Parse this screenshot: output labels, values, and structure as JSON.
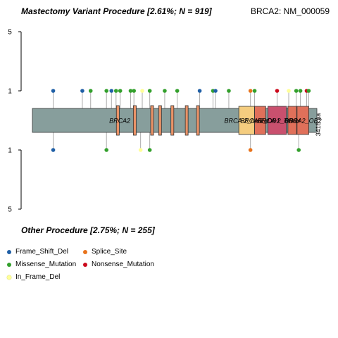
{
  "titles": {
    "top_group": "Mastectomy Variant Procedure [2.61%; N = 919]",
    "bottom_group": "Other Procedure [2.75%; N = 255]",
    "gene_transcript": "BRCA2: NM_000059"
  },
  "colors": {
    "frame_shift_del": "#1f5fa6",
    "missense_mutation": "#33a02c",
    "in_frame_del": "#ffff99",
    "splice_site": "#e8731c",
    "nonsense_mutation": "#cc0a1c",
    "protein_body": "#879e9c",
    "brca2_repeat": "#e99267",
    "brca2_helical": "#f5cd7f",
    "brca2_ob1": "#e0705a",
    "brca2_ob3": "#c9506e",
    "tower": "#e0705a"
  },
  "legend": [
    {
      "key": "frame_shift_del",
      "label": "Frame_Shift_Del"
    },
    {
      "key": "splice_site",
      "label": "Splice_Site"
    },
    {
      "key": "missense_mutation",
      "label": "Missense_Mutation"
    },
    {
      "key": "nonsense_mutation",
      "label": "Nonsense_Mutation"
    },
    {
      "key": "in_frame_del",
      "label": "In_Frame_Del"
    }
  ],
  "chart_data": {
    "type": "lollipop",
    "protein_length": 3418,
    "protein_length_label": "3418 aa",
    "top_axis": {
      "ticks": [
        "5",
        "1"
      ]
    },
    "bottom_axis": {
      "ticks": [
        "1",
        "5"
      ]
    },
    "domains": [
      {
        "name": "BRCA2",
        "start": 1009,
        "end": 1044,
        "label": "BRCA2",
        "label_pos": 1050,
        "color_key": "brca2_repeat"
      },
      {
        "name": "BRCA2",
        "start": 1213,
        "end": 1248,
        "color_key": "brca2_repeat"
      },
      {
        "name": "BRCA2",
        "start": 1421,
        "end": 1456,
        "color_key": "brca2_repeat"
      },
      {
        "name": "BRCA2",
        "start": 1517,
        "end": 1551,
        "color_key": "brca2_repeat"
      },
      {
        "name": "BRCA2",
        "start": 1664,
        "end": 1699,
        "color_key": "brca2_repeat"
      },
      {
        "name": "BRCA2",
        "start": 1837,
        "end": 1871,
        "color_key": "brca2_repeat"
      },
      {
        "name": "BRCA2",
        "start": 1972,
        "end": 2006,
        "color_key": "brca2_repeat"
      },
      {
        "name": "BRCA-2_helical",
        "start": 2480,
        "end": 2668,
        "label": "BRCA-2_helical",
        "color_key": "brca2_helical"
      },
      {
        "name": "BRCA-2_OB1",
        "start": 2670,
        "end": 2803,
        "label": "BRCA-2_OB1",
        "color_key": "brca2_ob1"
      },
      {
        "name": "BRCA-2_OB3",
        "start": 2830,
        "end": 3052,
        "label": "BRCA-2_OB3",
        "color_key": "brca2_ob3"
      },
      {
        "name": "Tower",
        "start": 3070,
        "end": 3175,
        "label": "Tower",
        "color_key": "tower"
      },
      {
        "name": "BRCA-2_OB2",
        "start": 3180,
        "end": 3320,
        "label": "BRCA2_OB2",
        "color_key": "tower"
      }
    ],
    "top_mutations": [
      {
        "position": 250,
        "count": 1,
        "type": "frame_shift_del"
      },
      {
        "position": 600,
        "count": 1,
        "type": "frame_shift_del"
      },
      {
        "position": 700,
        "count": 1,
        "type": "missense_mutation"
      },
      {
        "position": 890,
        "count": 1,
        "type": "missense_mutation"
      },
      {
        "position": 950,
        "count": 1,
        "type": "frame_shift_del"
      },
      {
        "position": 1005,
        "count": 1,
        "type": "missense_mutation"
      },
      {
        "position": 1055,
        "count": 1,
        "type": "missense_mutation"
      },
      {
        "position": 1180,
        "count": 1,
        "type": "missense_mutation"
      },
      {
        "position": 1220,
        "count": 1,
        "type": "missense_mutation"
      },
      {
        "position": 1320,
        "count": 1,
        "type": "in_frame_del"
      },
      {
        "position": 1410,
        "count": 1,
        "type": "missense_mutation"
      },
      {
        "position": 1590,
        "count": 1,
        "type": "missense_mutation"
      },
      {
        "position": 1740,
        "count": 1,
        "type": "missense_mutation"
      },
      {
        "position": 2010,
        "count": 1,
        "type": "frame_shift_del"
      },
      {
        "position": 2170,
        "count": 1,
        "type": "missense_mutation"
      },
      {
        "position": 2200,
        "count": 1,
        "type": "frame_shift_del"
      },
      {
        "position": 2360,
        "count": 1,
        "type": "missense_mutation"
      },
      {
        "position": 2620,
        "count": 1,
        "type": "splice_site"
      },
      {
        "position": 2670,
        "count": 1,
        "type": "missense_mutation"
      },
      {
        "position": 2940,
        "count": 1,
        "type": "nonsense_mutation"
      },
      {
        "position": 3080,
        "count": 1,
        "type": "in_frame_del"
      },
      {
        "position": 3170,
        "count": 1,
        "type": "missense_mutation"
      },
      {
        "position": 3220,
        "count": 1,
        "type": "missense_mutation"
      },
      {
        "position": 3295,
        "count": 1,
        "type": "nonsense_mutation"
      },
      {
        "position": 3320,
        "count": 1,
        "type": "missense_mutation"
      }
    ],
    "bottom_mutations": [
      {
        "position": 250,
        "count": 1,
        "type": "frame_shift_del"
      },
      {
        "position": 890,
        "count": 1,
        "type": "missense_mutation"
      },
      {
        "position": 1300,
        "count": 1,
        "type": "in_frame_del"
      },
      {
        "position": 1410,
        "count": 1,
        "type": "missense_mutation"
      },
      {
        "position": 2620,
        "count": 1,
        "type": "splice_site"
      },
      {
        "position": 3200,
        "count": 1,
        "type": "missense_mutation"
      }
    ]
  }
}
